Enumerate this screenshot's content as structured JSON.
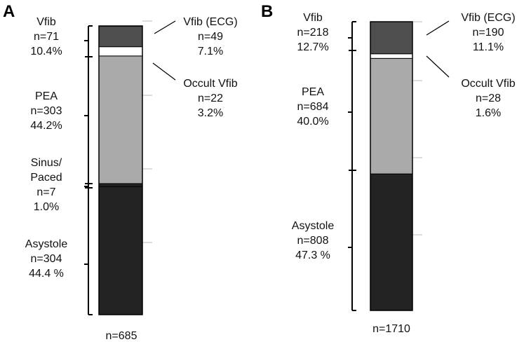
{
  "chart_data": [
    {
      "type": "bar",
      "stacked": true,
      "panel_label": "A",
      "total_label": "n=685",
      "unit": "percent",
      "ylim": [
        0,
        100
      ],
      "segments": [
        {
          "key": "asystole",
          "value": 44.4,
          "color": "#232323"
        },
        {
          "key": "sinus",
          "value": 1.0,
          "color": "#232323"
        },
        {
          "key": "pea",
          "value": 44.2,
          "color": "#aaaaaa"
        },
        {
          "key": "occult",
          "value": 3.2,
          "color": "#ffffff"
        },
        {
          "key": "vfib_ecg",
          "value": 7.1,
          "color": "#4e4e4e"
        }
      ],
      "left_labels": [
        {
          "key": "vfib",
          "lines": [
            "Vfib",
            "n=71",
            "10.4%"
          ]
        },
        {
          "key": "pea",
          "lines": [
            "PEA",
            "n=303",
            "44.2%"
          ]
        },
        {
          "key": "sinus",
          "lines": [
            "Sinus/",
            "Paced",
            "n=7",
            "1.0%"
          ]
        },
        {
          "key": "asystole",
          "lines": [
            "Asystole",
            "n=304",
            "44.4 %"
          ]
        }
      ],
      "right_labels": [
        {
          "key": "vfib_ecg",
          "lines": [
            "Vfib (ECG)",
            "n=49",
            "7.1%"
          ]
        },
        {
          "key": "occult",
          "lines": [
            "Occult Vfib",
            "n=22",
            "3.2%"
          ]
        }
      ]
    },
    {
      "type": "bar",
      "stacked": true,
      "panel_label": "B",
      "total_label": "n=1710",
      "unit": "percent",
      "ylim": [
        0,
        100
      ],
      "segments": [
        {
          "key": "asystole",
          "value": 47.3,
          "color": "#232323"
        },
        {
          "key": "pea",
          "value": 40.0,
          "color": "#aaaaaa"
        },
        {
          "key": "occult",
          "value": 1.6,
          "color": "#ffffff"
        },
        {
          "key": "vfib_ecg",
          "value": 11.1,
          "color": "#4e4e4e"
        }
      ],
      "left_labels": [
        {
          "key": "vfib",
          "lines": [
            "Vfib",
            "n=218",
            "12.7%"
          ]
        },
        {
          "key": "pea",
          "lines": [
            "PEA",
            "n=684",
            "40.0%"
          ]
        },
        {
          "key": "asystole",
          "lines": [
            "Asystole",
            "n=808",
            "47.3 %"
          ]
        }
      ],
      "right_labels": [
        {
          "key": "vfib_ecg",
          "lines": [
            "Vfib (ECG)",
            "n=190",
            "11.1%"
          ]
        },
        {
          "key": "occult",
          "lines": [
            "Occult Vfib",
            "n=28",
            "1.6%"
          ]
        }
      ]
    }
  ]
}
